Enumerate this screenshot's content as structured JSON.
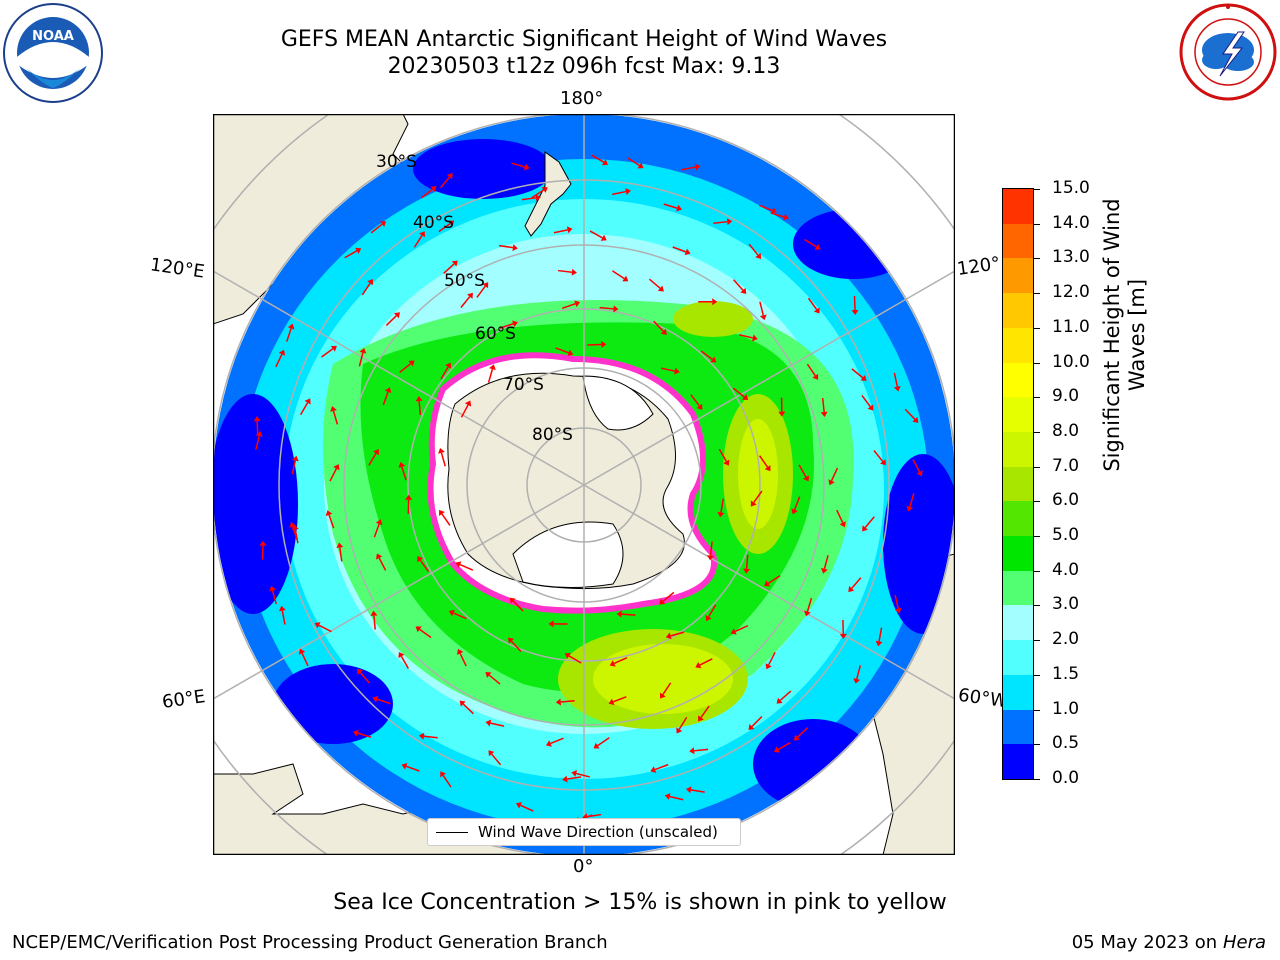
{
  "header": {
    "title_line1": "GEFS MEAN Antarctic Significant Height of Wind Waves",
    "title_line2": "20230503 t12z 096h fcst   Max: 9.13"
  },
  "logos": {
    "left": "NOAA",
    "left_ring_text": "NATIONAL OCEANIC AND ATMOSPHERIC ADMINISTRATION · U.S. DEPARTMENT OF COMMERCE",
    "right_ring_text": "NATIONAL WEATHER SERVICE"
  },
  "map": {
    "projection": "south polar stereographic",
    "longitude_labels": {
      "top": "180°",
      "bottom": "0°",
      "upper_left": "120°E",
      "lower_left": "60°E",
      "upper_right": "120°",
      "lower_right": "60°W"
    },
    "latitude_labels": [
      "30°S",
      "40°S",
      "50°S",
      "60°S",
      "70°S",
      "80°S"
    ],
    "legend_label": "Wind Wave Direction (unscaled)",
    "colors": {
      "land": "#efecdb",
      "sea_ice_edge": "#ff33cc",
      "graticule": "#b0b0b0",
      "arrows": "#ff0000"
    }
  },
  "colorbar": {
    "title": "Significant Height of Wind Waves [m]",
    "title_line1": "Significant Height of Wind",
    "title_line2": "Waves [m]",
    "tick_labels": [
      "0.0",
      "0.5",
      "1.0",
      "1.5",
      "2.0",
      "3.0",
      "4.0",
      "5.0",
      "6.0",
      "7.0",
      "8.0",
      "9.0",
      "10.0",
      "11.0",
      "12.0",
      "13.0",
      "14.0",
      "15.0"
    ],
    "colors": [
      "#0000ff",
      "#0072ff",
      "#00e5ff",
      "#52ffff",
      "#a3ffff",
      "#52ff73",
      "#00e600",
      "#52e600",
      "#a8e600",
      "#ccf500",
      "#e6ff00",
      "#ffff00",
      "#ffe500",
      "#ffc800",
      "#ff9900",
      "#ff6600",
      "#ff3300"
    ]
  },
  "footer": {
    "sea_ice_note": "Sea Ice Concentration > 15% is shown in pink to yellow",
    "credit_left": "NCEP/EMC/Verification Post Processing Product Generation Branch",
    "credit_right_date": "05 May 2023 on",
    "credit_right_host": "Hera"
  }
}
